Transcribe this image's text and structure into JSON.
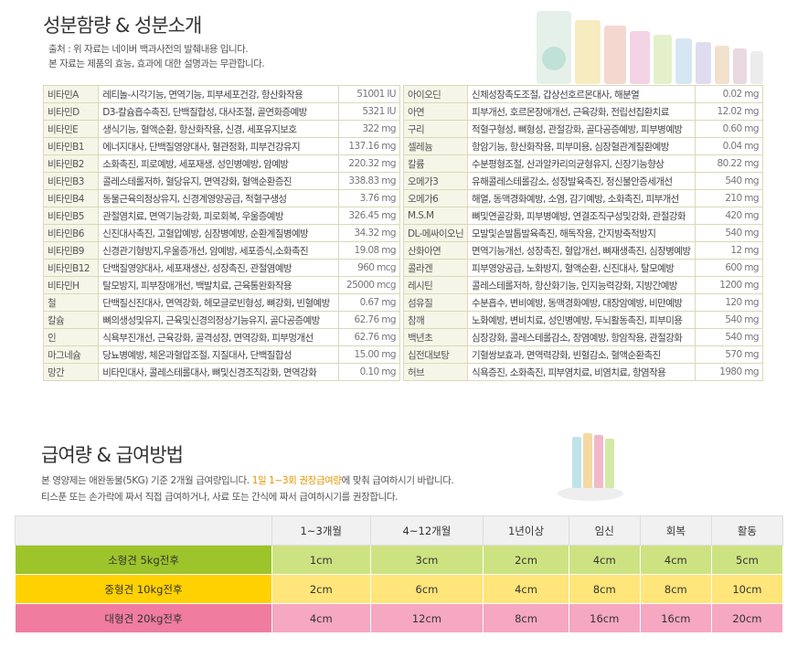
{
  "header": {
    "title": "성분함량 & 성분소개",
    "notes": [
      "출처 : 위 자료는 네이버 백과사전의 발췌내용 입니다.",
      "본 자료는 제품의 효능, 효과에 대한 설명과는 무관합니다."
    ]
  },
  "ingredients": {
    "left": [
      [
        "비타민A",
        "레티놀-시각기능, 면역기능, 피부세포건강, 항산화작용",
        "51001 IU"
      ],
      [
        "비타민D",
        "D3-칼슘흡수촉진, 단백질합성, 대사조절, 골연화증예방",
        "5321 IU"
      ],
      [
        "비타민E",
        "생식기능, 혈액순환, 항산화작용, 신경, 세포유지보호",
        "322 mg"
      ],
      [
        "비타민B1",
        "에너지대사, 단백질영양대사, 혈관정화, 피부건강유지",
        "137.16 mg"
      ],
      [
        "비타민B2",
        "소화촉진, 피로예방, 세포재생, 성인병예방, 암예방",
        "220.32 mg"
      ],
      [
        "비타민B3",
        "콜레스테롤저하, 혈당유지, 면역강화, 혈액순환증진",
        "338.83 mg"
      ],
      [
        "비타민B4",
        "동물근육의정상유지, 신경계영양공급, 적혈구생성",
        "3.76 mg"
      ],
      [
        "비타민B5",
        "관절염치료, 면역기능강화, 피로회복, 우울증예방",
        "326.45 mg"
      ],
      [
        "비타민B6",
        "신진대사촉진, 고혈압예방, 심장병예방, 순환계질병예방",
        "34.32 mg"
      ],
      [
        "비타민B9",
        "신경관기형방지,우울증개선, 암예방, 세포증식,소화촉진",
        "19.08 mg"
      ],
      [
        "비타민B12",
        "단백질영양대사, 세포재생산, 성장촉진, 관절염예방",
        "960 mcg"
      ],
      [
        "비타민H",
        "탈모방지, 피부장애개선, 백발치료, 근육통완화작용",
        "25000 mcg"
      ],
      [
        "철",
        "단백질신진대사, 면역강화, 헤모글로빈형성, 뼈강화, 빈혈예방",
        "0.67 mg"
      ],
      [
        "칼슘",
        "뼈의생성및유지, 근육및신경의정상기능유지, 골다공증예방",
        "62.76 mg"
      ],
      [
        "인",
        "식욕부진개선, 근육강화, 골격성장, 면역강화, 피부멍개선",
        "62.76 mg"
      ],
      [
        "마그네슘",
        "당뇨병예방, 체온과혈압조절, 지질대사, 단백질합성",
        "15.00 mg"
      ],
      [
        "망간",
        "비타민대사, 콜레스테롤대사, 뼈및신경조직강화, 면역강화",
        "0.10 mg"
      ]
    ],
    "right": [
      [
        "아이오딘",
        "신체성장촉도조절, 갑상선호르몬대사, 해분열",
        "0.02 mg"
      ],
      [
        "아연",
        "피부개선, 호르몬장애개선, 근육강화, 전립선집환치료",
        "12.02 mg"
      ],
      [
        "구리",
        "적혈구형성, 뼈형성, 관절강화, 골다공증예방, 피부병예방",
        "0.60 mg"
      ],
      [
        "셀레늄",
        "항암기능, 항산화작용, 피부미용, 심장혈관계질환예방",
        "0.04 mg"
      ],
      [
        "칼륨",
        "수분평형조절, 산과알카리의균형유지, 신장기능향상",
        "80.22 mg"
      ],
      [
        "오메가3",
        "유해콜레스테롤감소, 성장발육촉진, 정신불안증세개선",
        "540 mg"
      ],
      [
        "오메가6",
        "해열, 동맥경화예방, 소염, 감기예방, 소화촉진, 피부개선",
        "210 mg"
      ],
      [
        "M.S.M",
        "뼈및연골강화, 피부병예방, 연결조직구성및강화, 관절강화",
        "420 mg"
      ],
      [
        "DL-메싸이오닌",
        "모발및손발톱발육촉진, 해독작용, 간지방축적방지",
        "540 mg"
      ],
      [
        "산화아연",
        "면역기능개선, 성장촉진, 혈압개선, 뼈재생촉진, 심장병예방",
        "12 mg"
      ],
      [
        "콜라겐",
        "피부영양공급, 노화방지, 혈액순환, 신진대사, 탈모예방",
        "600 mg"
      ],
      [
        "레시틴",
        "콜레스테롤저하, 항산화기능, 인지능력강화, 지방간예방",
        "1200 mg"
      ],
      [
        "섬유질",
        "수분흡수, 변비예방, 동맥경화예방, 대장암예방, 비만예방",
        "120 mg"
      ],
      [
        "참깨",
        "노화예방, 변비치료, 성인병예방, 두뇌활동촉진, 피부미용",
        "540 mg"
      ],
      [
        "백년초",
        "심장강화, 콜레스테롤감소, 장염예방, 항암작용, 관절강화",
        "540 mg"
      ],
      [
        "십전대보탕",
        "기혈쌍보효과, 면역력강화, 빈혈감소, 혈액순환촉진",
        "570 mg"
      ],
      [
        "허브",
        "식욕증진, 소화촉진, 피부염치료, 비염치료, 항염작용",
        "1980 mg"
      ]
    ]
  },
  "dosage": {
    "title": "급여량 & 급여방법",
    "text1": {
      "before": "본 영양제는 애완동물(5KG) 기준 2개월 급여량입니다. ",
      "highlight": "1일 1~3회 권장급여량",
      "after": "에 맞춰 급여하시기 바랍니다."
    },
    "text2": "티스푼 또는 손가락에 짜서 직접 급여하거나, 사료 또는 간식에 짜서 급여하시기를 권장합니다.",
    "table": {
      "columns": [
        "1~3개월",
        "4~12개월",
        "1년이상",
        "임신",
        "회복",
        "활동"
      ],
      "rows": [
        [
          "소형견 5kg전후",
          "1cm",
          "3cm",
          "2cm",
          "4cm",
          "4cm",
          "5cm"
        ],
        [
          "중형견 10kg전후",
          "2cm",
          "6cm",
          "4cm",
          "8cm",
          "8cm",
          "10cm"
        ],
        [
          "대형견 20kg전후",
          "4cm",
          "12cm",
          "8cm",
          "16cm",
          "16cm",
          "20cm"
        ]
      ]
    }
  }
}
